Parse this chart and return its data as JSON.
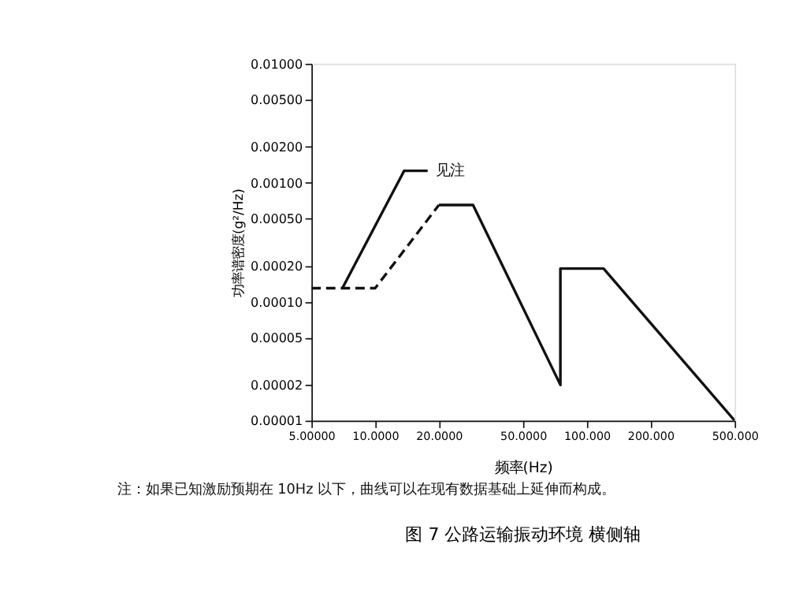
{
  "chart_data": {
    "type": "line",
    "title": "图 7  公路运输振动环境  横侧轴",
    "xlabel": "频率(Hz)",
    "ylabel": "功率谱密度(g²/Hz)",
    "log": "xy",
    "grid": false,
    "marker": "none",
    "xlim": [
      5,
      500
    ],
    "ylim": [
      1e-05,
      0.01
    ],
    "xticks": [
      {
        "value": 5,
        "label": "5.00000"
      },
      {
        "value": 10,
        "label": "10.0000"
      },
      {
        "value": 20,
        "label": "20.0000"
      },
      {
        "value": 50,
        "label": "50.0000"
      },
      {
        "value": 100,
        "label": "100.000"
      },
      {
        "value": 200,
        "label": "200.000"
      },
      {
        "value": 500,
        "label": "500.000"
      }
    ],
    "yticks": [
      {
        "value": 0.01,
        "label": "0.01000"
      },
      {
        "value": 0.005,
        "label": "0.00500"
      },
      {
        "value": 0.002,
        "label": "0.00200"
      },
      {
        "value": 0.001,
        "label": "0.00100"
      },
      {
        "value": 0.0005,
        "label": "0.00050"
      },
      {
        "value": 0.0002,
        "label": "0.00020"
      },
      {
        "value": 0.0001,
        "label": "0.00010"
      },
      {
        "value": 5e-05,
        "label": "0.00005"
      },
      {
        "value": 2e-05,
        "label": "0.00002"
      },
      {
        "value": 1e-05,
        "label": "0.00001"
      }
    ],
    "series": [
      {
        "color": "#111111",
        "line_style": "dashed",
        "x": [
          5,
          10,
          20
        ],
        "values": [
          0.00013,
          0.00013,
          0.00065
        ]
      },
      {
        "color": "#111111",
        "line_style": "solid",
        "x": [
          20,
          29,
          75,
          75,
          120,
          500
        ],
        "values": [
          0.00065,
          0.00065,
          2e-05,
          0.00019,
          0.00019,
          1e-05
        ]
      },
      {
        "color": "#111111",
        "line_style": "solid",
        "x": [
          7,
          13.7,
          17.7
        ],
        "values": [
          0.00013,
          0.00126,
          0.00126
        ]
      }
    ],
    "annotations": [
      "见注",
      "注：如果已知激励预期在 10Hz 以下，曲线可以在现有数据基础上延伸而构成。"
    ]
  }
}
